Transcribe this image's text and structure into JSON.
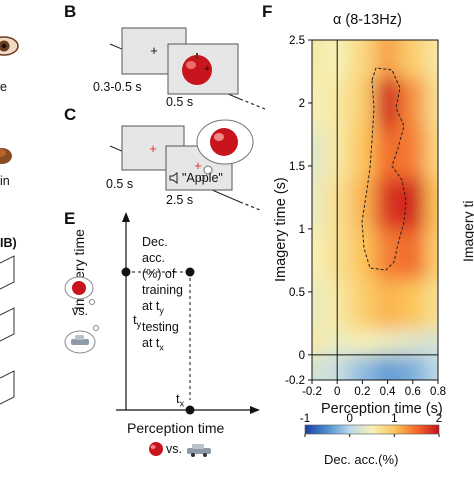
{
  "figure": {
    "left_fragments": [
      "e",
      "in",
      "IB)"
    ],
    "panel_b": {
      "letter": "B",
      "fix_duration": "0.3-0.5 s",
      "stim_duration": "0.5 s"
    },
    "panel_c": {
      "letter": "C",
      "fix_duration": "0.5 s",
      "cue_duration": "2.5 s",
      "sound_word": "\"Apple\""
    },
    "panel_e": {
      "letter": "E",
      "ylabel": "Imagery time",
      "xlabel": "Perception time",
      "vs_label": "vs.",
      "bottom_vs_label": "vs.",
      "point_y_label": "t",
      "point_y_sub": "y",
      "point_x_label": "t",
      "point_x_sub": "x",
      "desc_line1": "Dec. acc. (%) of",
      "desc_line2": "training at t",
      "desc_line2_sub": "y",
      "desc_line3": "testing at t",
      "desc_line3_sub": "x"
    },
    "panel_f": {
      "letter": "F",
      "side_label_fragment": "Imagery ti",
      "colorbar_label": "Dec. acc.(%)",
      "colorbar_ticks": [
        "-1",
        "0",
        "1",
        "2"
      ]
    }
  },
  "chart_data": {
    "type": "heatmap",
    "title": "α (8-13Hz)",
    "xlabel": "Perception time (s)",
    "ylabel": "Imagery time (s)",
    "xlim": [
      -0.2,
      0.8
    ],
    "ylim": [
      -0.2,
      2.5
    ],
    "xticks": [
      -0.2,
      0,
      0.2,
      0.4,
      0.6,
      0.8
    ],
    "xtick_labels": [
      "-0.2",
      "0",
      "0.2",
      "0.4",
      "0.6",
      "0.8"
    ],
    "yticks": [
      -0.2,
      0,
      0.5,
      1,
      1.5,
      2,
      2.5
    ],
    "ytick_labels": [
      "-0.2",
      "0",
      "0.5",
      "1",
      "1.5",
      "2",
      "2.5"
    ],
    "color_range": [
      -1,
      2
    ],
    "colormap": [
      "#1a3fa0",
      "#4f8fd0",
      "#bcd9ea",
      "#f6f1b7",
      "#fcc55a",
      "#f26b2a",
      "#c8111b"
    ],
    "reference_lines": {
      "x": 0,
      "y": 0
    },
    "x": [
      -0.2,
      0.0,
      0.2,
      0.4,
      0.6,
      0.8
    ],
    "y": [
      2.4,
      2.0,
      1.6,
      1.2,
      0.8,
      0.4,
      0.0,
      -0.2
    ],
    "values": [
      [
        0.6,
        0.5,
        0.8,
        1.2,
        0.9,
        0.6
      ],
      [
        0.5,
        0.6,
        0.9,
        1.9,
        1.3,
        0.7
      ],
      [
        0.3,
        0.6,
        1.0,
        1.5,
        1.4,
        0.8
      ],
      [
        0.4,
        0.7,
        1.1,
        1.8,
        1.9,
        1.0
      ],
      [
        0.5,
        0.7,
        1.0,
        1.4,
        1.5,
        0.9
      ],
      [
        0.4,
        0.6,
        0.9,
        1.1,
        1.0,
        0.7
      ],
      [
        0.6,
        0.4,
        0.5,
        0.4,
        0.3,
        0.2
      ],
      [
        0.2,
        0.1,
        -0.2,
        -0.4,
        -0.3,
        0.0
      ]
    ]
  },
  "colors": {
    "axis": "#111111",
    "screen_fill": "#e6e6e6",
    "fix_cross_red": "#e0342c",
    "apple_red": "#c8151d"
  }
}
